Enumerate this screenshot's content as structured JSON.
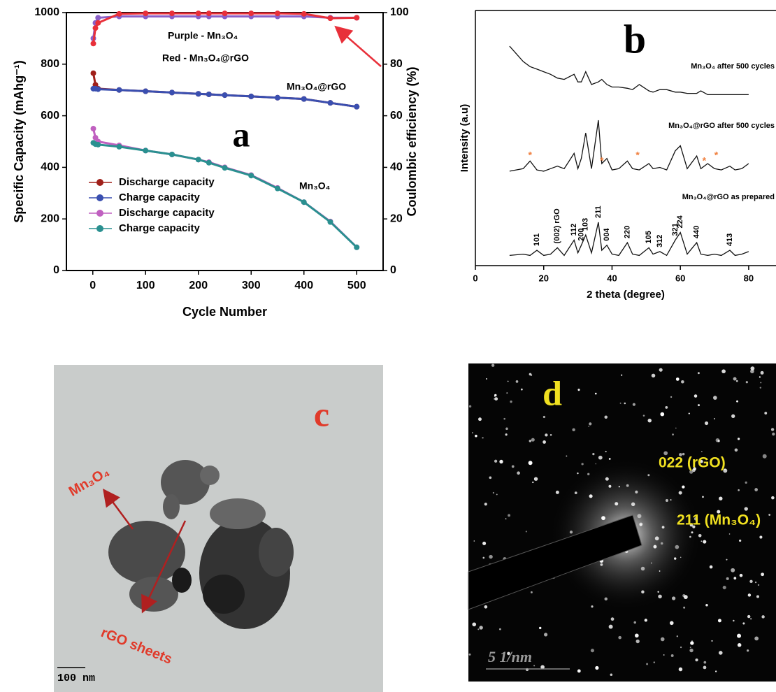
{
  "chart_data": [
    {
      "type": "line",
      "title": "a",
      "xlabel": "Cycle Number",
      "ylabel": "Specific Capacity (mAhg⁻¹)",
      "y2label": "Coulombic efficiency (%)",
      "x": [
        1,
        5,
        10,
        50,
        100,
        150,
        200,
        220,
        250,
        300,
        350,
        400,
        450,
        500
      ],
      "series": [
        {
          "name": "Discharge capacity",
          "color": "#a0201a",
          "values": [
            765,
            720,
            705,
            700,
            695,
            690,
            685,
            683,
            680,
            675,
            670,
            665,
            650,
            635
          ]
        },
        {
          "name": "Charge capacity",
          "color": "#3a4fb0",
          "values": [
            705,
            705,
            703,
            700,
            695,
            690,
            685,
            683,
            680,
            675,
            670,
            665,
            650,
            635
          ]
        },
        {
          "name": "Discharge capacity",
          "color": "#c060c0",
          "values": [
            550,
            515,
            500,
            485,
            465,
            450,
            430,
            420,
            400,
            370,
            320,
            265,
            190,
            90
          ]
        },
        {
          "name": "Charge capacity",
          "color": "#2a9090",
          "values": [
            495,
            490,
            488,
            480,
            465,
            450,
            430,
            418,
            398,
            368,
            318,
            265,
            188,
            90
          ]
        },
        {
          "color": "#8a60c8",
          "axis": "y2",
          "values": [
            90,
            96,
            98,
            98.5,
            98.5,
            98.5,
            98.5,
            98.5,
            98.5,
            98.5,
            98.5,
            98.5,
            98,
            98
          ]
        },
        {
          "color": "#e8303a",
          "axis": "y2",
          "values": [
            88,
            94,
            96,
            99.5,
            99.7,
            99.7,
            99.7,
            99.7,
            99.7,
            99.7,
            99.7,
            99.5,
            97.8,
            98
          ]
        }
      ],
      "annotations": [
        "Purple - Mn₃O₄",
        "Red - Mn₃O₄@rGO",
        "Mn₃O₄@rGO",
        "Mn₃O₄"
      ],
      "xlim": [
        -50,
        550
      ],
      "xticks": [
        0,
        100,
        200,
        300,
        400,
        500
      ],
      "ylim": [
        0,
        1000
      ],
      "yticks": [
        0,
        200,
        400,
        600,
        800,
        1000
      ],
      "y2lim": [
        0,
        100
      ],
      "y2ticks": [
        0,
        20,
        40,
        60,
        80,
        100
      ]
    },
    {
      "type": "line",
      "title": "b",
      "xlabel": "2 theta (degree)",
      "ylabel": "Intensity (a.u)",
      "x": [
        10,
        14,
        16,
        18,
        20,
        22,
        24,
        26,
        28.9,
        30,
        31,
        32.3,
        34,
        36,
        37,
        38.5,
        40,
        42,
        44.5,
        46,
        48,
        50.8,
        52,
        54,
        56,
        58.5,
        60,
        62,
        64.8,
        66,
        68,
        70,
        72,
        74.5,
        76,
        78,
        80
      ],
      "series": [
        {
          "name": "Mn₃O₄ after 500 cycles",
          "color": "#111111",
          "values": [
            86,
            80,
            78,
            77,
            76,
            75,
            73.5,
            73,
            75,
            72,
            72,
            76,
            71,
            72,
            73,
            71,
            70,
            70,
            69.5,
            69,
            71,
            68.5,
            68,
            69,
            69,
            68,
            68,
            67.5,
            67.5,
            68.5,
            67,
            67,
            67,
            67,
            67,
            67,
            67
          ]
        },
        {
          "name": "Mn₃O₄@rGO after 500 cycles",
          "color": "#111111",
          "values": [
            37,
            38,
            41,
            37.5,
            37,
            38,
            39,
            38,
            44,
            38,
            42,
            52,
            38,
            57,
            40,
            42,
            37.5,
            38,
            41,
            38,
            37.5,
            40,
            38,
            38.5,
            37.5,
            45,
            47,
            38,
            43,
            38,
            40,
            38,
            37.5,
            39,
            37.5,
            38,
            40
          ]
        },
        {
          "name": "Mn₃O₄@rGO as prepared",
          "color": "#111111",
          "values": [
            4,
            4.5,
            4,
            6,
            4,
            4.5,
            7,
            4,
            10,
            5,
            8,
            12,
            5,
            17,
            6,
            8,
            4.5,
            4,
            9,
            4.5,
            4,
            7,
            4.5,
            5.5,
            4,
            10,
            13,
            4.5,
            9,
            4.5,
            4,
            4.5,
            4,
            6,
            4,
            4.5,
            5.5
          ]
        }
      ],
      "peak_labels": [
        {
          "x": 18,
          "label": "101"
        },
        {
          "x": 24,
          "label": "(002) rGO"
        },
        {
          "x": 28.9,
          "label": "112"
        },
        {
          "x": 31,
          "label": "200"
        },
        {
          "x": 32.3,
          "label": "103"
        },
        {
          "x": 36,
          "label": "211"
        },
        {
          "x": 38.5,
          "label": "004"
        },
        {
          "x": 44.5,
          "label": "220"
        },
        {
          "x": 50.8,
          "label": "105"
        },
        {
          "x": 54,
          "label": "312"
        },
        {
          "x": 58.5,
          "label": "321"
        },
        {
          "x": 60,
          "label": "224"
        },
        {
          "x": 64.8,
          "label": "440"
        },
        {
          "x": 74.5,
          "label": "413"
        }
      ],
      "markers": {
        "symbol": "*",
        "color": "#f08040",
        "x": [
          16,
          37,
          47.5,
          67,
          70.5
        ]
      },
      "xlim": [
        0,
        88
      ],
      "xticks": [
        0,
        20,
        40,
        60,
        80
      ],
      "ylim": [
        0,
        100
      ]
    }
  ],
  "images": [
    {
      "label": "c",
      "annotations": [
        "Mn₃O₄",
        "rGO sheets"
      ],
      "scale_bar": "100 nm"
    },
    {
      "label": "d",
      "annotations": [
        "022 (rGO)",
        "211 (Mn₃O₄)"
      ],
      "scale_bar": "5 1/nm"
    }
  ]
}
